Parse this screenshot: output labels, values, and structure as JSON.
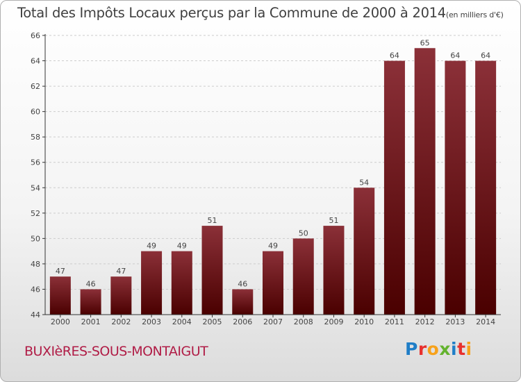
{
  "header": {
    "title": "Total des Impôts Locaux perçus par la Commune de 2000 à 2014",
    "unit": "(en milliers d'€)"
  },
  "footer": {
    "town": "BUXIèRES-SOUS-MONTAIGUT",
    "logo_letters": [
      "P",
      "r",
      "o",
      "x",
      "i",
      "t",
      "i"
    ]
  },
  "colors": {
    "bar_top": "#8b3038",
    "bar_bottom": "#4a0000",
    "axis": "#333333",
    "grid": "#cccccc",
    "title": "#404040",
    "town": "#b01c46"
  },
  "chart_data": {
    "type": "bar",
    "title": "Total des Impôts Locaux perçus par la Commune de 2000 à 2014",
    "xlabel": "",
    "ylabel": "",
    "categories": [
      "2000",
      "2001",
      "2002",
      "2003",
      "2004",
      "2005",
      "2006",
      "2007",
      "2008",
      "2009",
      "2010",
      "2011",
      "2012",
      "2013",
      "2014"
    ],
    "values": [
      47,
      46,
      47,
      49,
      49,
      51,
      46,
      49,
      50,
      51,
      54,
      64,
      65,
      64,
      64
    ],
    "ylim": [
      44,
      66
    ],
    "yticks": [
      44,
      46,
      48,
      50,
      52,
      54,
      56,
      58,
      60,
      62,
      64,
      66
    ],
    "grid": true,
    "data_labels": true
  }
}
